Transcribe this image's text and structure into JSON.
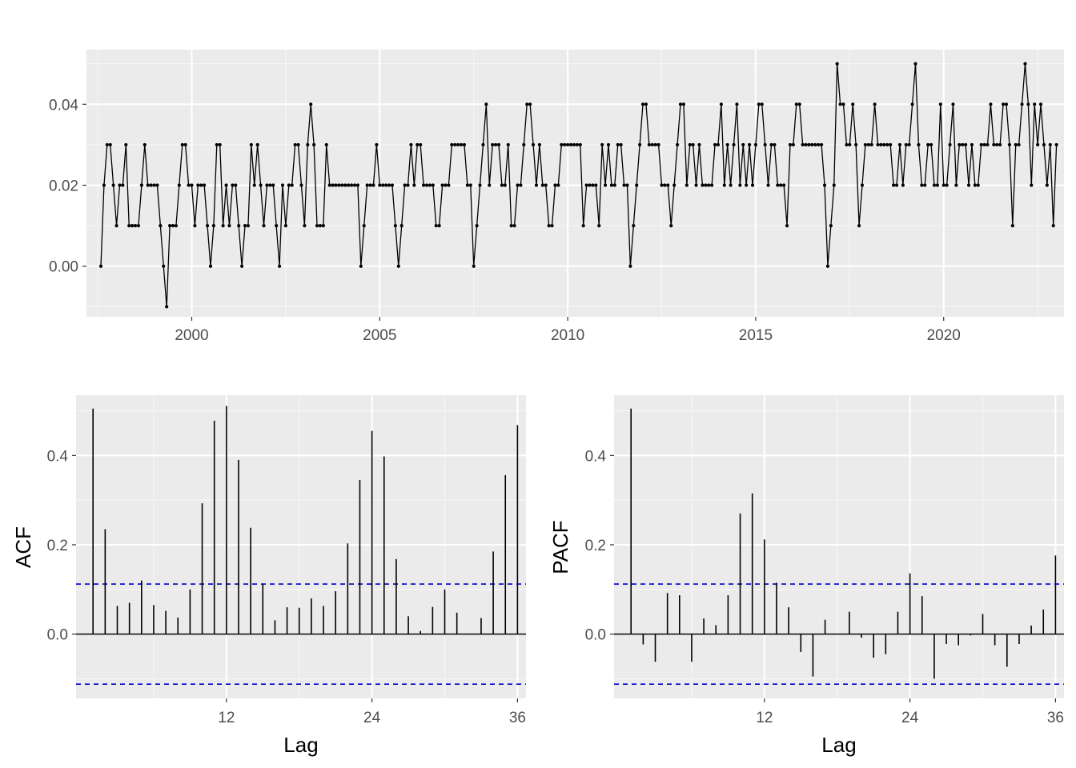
{
  "colors": {
    "panel_bg": "#ebebeb",
    "grid_major": "#ffffff",
    "grid_minor": "#f7f7f7",
    "series": "#000000",
    "ci_line": "#0000cc",
    "tick_text": "#4d4d4d"
  },
  "chart_data": [
    {
      "id": "series",
      "type": "line",
      "title": "",
      "xlabel": "",
      "ylabel": "",
      "xlim": [
        1997.2,
        2023.2
      ],
      "ylim": [
        -0.0125,
        0.0535
      ],
      "x_ticks": [
        2000,
        2005,
        2010,
        2015,
        2020
      ],
      "x_tick_labels": [
        "2000",
        "2005",
        "2010",
        "2015",
        "2020"
      ],
      "y_ticks": [
        0.0,
        0.02,
        0.04
      ],
      "y_tick_labels": [
        "0.00",
        "0.02",
        "0.04"
      ],
      "grid": true,
      "point_markers": true,
      "x_start": 1997.5833,
      "x_step": 0.0833333,
      "values": [
        0.0,
        0.02,
        0.03,
        0.03,
        0.02,
        0.01,
        0.02,
        0.02,
        0.03,
        0.01,
        0.01,
        0.01,
        0.01,
        0.02,
        0.03,
        0.02,
        0.02,
        0.02,
        0.02,
        0.01,
        0.0,
        -0.01,
        0.01,
        0.01,
        0.01,
        0.02,
        0.03,
        0.03,
        0.02,
        0.02,
        0.01,
        0.02,
        0.02,
        0.02,
        0.01,
        0.0,
        0.01,
        0.03,
        0.03,
        0.01,
        0.02,
        0.01,
        0.02,
        0.02,
        0.01,
        0.0,
        0.01,
        0.01,
        0.03,
        0.02,
        0.03,
        0.02,
        0.01,
        0.02,
        0.02,
        0.02,
        0.01,
        0.0,
        0.02,
        0.01,
        0.02,
        0.02,
        0.03,
        0.03,
        0.02,
        0.01,
        0.03,
        0.04,
        0.03,
        0.01,
        0.01,
        0.01,
        0.03,
        0.02,
        0.02,
        0.02,
        0.02,
        0.02,
        0.02,
        0.02,
        0.02,
        0.02,
        0.02,
        0.0,
        0.01,
        0.02,
        0.02,
        0.02,
        0.03,
        0.02,
        0.02,
        0.02,
        0.02,
        0.02,
        0.01,
        0.0,
        0.01,
        0.02,
        0.02,
        0.03,
        0.02,
        0.03,
        0.03,
        0.02,
        0.02,
        0.02,
        0.02,
        0.01,
        0.01,
        0.02,
        0.02,
        0.02,
        0.03,
        0.03,
        0.03,
        0.03,
        0.03,
        0.02,
        0.02,
        0.0,
        0.01,
        0.02,
        0.03,
        0.04,
        0.02,
        0.03,
        0.03,
        0.03,
        0.02,
        0.02,
        0.03,
        0.01,
        0.01,
        0.02,
        0.02,
        0.03,
        0.04,
        0.04,
        0.03,
        0.02,
        0.03,
        0.02,
        0.02,
        0.01,
        0.01,
        0.02,
        0.02,
        0.03,
        0.03,
        0.03,
        0.03,
        0.03,
        0.03,
        0.03,
        0.01,
        0.02,
        0.02,
        0.02,
        0.02,
        0.01,
        0.03,
        0.02,
        0.03,
        0.02,
        0.02,
        0.03,
        0.03,
        0.02,
        0.02,
        0.0,
        0.01,
        0.02,
        0.03,
        0.04,
        0.04,
        0.03,
        0.03,
        0.03,
        0.03,
        0.02,
        0.02,
        0.02,
        0.01,
        0.02,
        0.03,
        0.04,
        0.04,
        0.02,
        0.03,
        0.03,
        0.02,
        0.03,
        0.02,
        0.02,
        0.02,
        0.02,
        0.03,
        0.03,
        0.04,
        0.02,
        0.03,
        0.02,
        0.03,
        0.04,
        0.02,
        0.03,
        0.02,
        0.03,
        0.02,
        0.03,
        0.04,
        0.04,
        0.03,
        0.02,
        0.03,
        0.03,
        0.02,
        0.02,
        0.02,
        0.01,
        0.03,
        0.03,
        0.04,
        0.04,
        0.03,
        0.03,
        0.03,
        0.03,
        0.03,
        0.03,
        0.03,
        0.02,
        0.0,
        0.01,
        0.02,
        0.05,
        0.04,
        0.04,
        0.03,
        0.03,
        0.04,
        0.03,
        0.01,
        0.02,
        0.03,
        0.03,
        0.03,
        0.04,
        0.03,
        0.03,
        0.03,
        0.03,
        0.03,
        0.02,
        0.02,
        0.03,
        0.02,
        0.03,
        0.03,
        0.04,
        0.05,
        0.03,
        0.02,
        0.02,
        0.03,
        0.03,
        0.02,
        0.02,
        0.04,
        0.02,
        0.02,
        0.03,
        0.04,
        0.02,
        0.03,
        0.03,
        0.03,
        0.02,
        0.03,
        0.02,
        0.02,
        0.03,
        0.03,
        0.03,
        0.04,
        0.03,
        0.03,
        0.03,
        0.04,
        0.04,
        0.03,
        0.01,
        0.03,
        0.03,
        0.04,
        0.05,
        0.04,
        0.02,
        0.04,
        0.03,
        0.04,
        0.03,
        0.02,
        0.03,
        0.01,
        0.03
      ]
    },
    {
      "id": "acf",
      "type": "bar",
      "title": "",
      "xlabel": "Lag",
      "ylabel": "ACF",
      "xlim": [
        -0.4,
        36.7
      ],
      "ylim": [
        -0.144,
        0.535
      ],
      "x_ticks": [
        12,
        24,
        36
      ],
      "x_tick_labels": [
        "12",
        "24",
        "36"
      ],
      "y_ticks": [
        0.0,
        0.2,
        0.4
      ],
      "y_tick_labels": [
        "0.0",
        "0.2",
        "0.4"
      ],
      "grid": true,
      "ci": 0.112,
      "lags": [
        1,
        2,
        3,
        4,
        5,
        6,
        7,
        8,
        9,
        10,
        11,
        12,
        13,
        14,
        15,
        16,
        17,
        18,
        19,
        20,
        21,
        22,
        23,
        24,
        25,
        26,
        27,
        28,
        29,
        30,
        31,
        32,
        33,
        34,
        35,
        36
      ],
      "values": [
        0.505,
        0.235,
        0.063,
        0.07,
        0.12,
        0.065,
        0.052,
        0.037,
        0.1,
        0.293,
        0.478,
        0.511,
        0.39,
        0.238,
        0.112,
        0.031,
        0.06,
        0.059,
        0.08,
        0.063,
        0.096,
        0.203,
        0.345,
        0.455,
        0.398,
        0.168,
        0.04,
        0.007,
        0.061,
        0.1,
        0.048,
        0.0,
        0.036,
        0.185,
        0.356,
        0.468
      ]
    },
    {
      "id": "pacf",
      "type": "bar",
      "title": "",
      "xlabel": "Lag",
      "ylabel": "PACF",
      "xlim": [
        -0.4,
        36.7
      ],
      "ylim": [
        -0.144,
        0.535
      ],
      "x_ticks": [
        12,
        24,
        36
      ],
      "x_tick_labels": [
        "12",
        "24",
        "36"
      ],
      "y_ticks": [
        0.0,
        0.2,
        0.4
      ],
      "y_tick_labels": [
        "0.0",
        "0.2",
        "0.4"
      ],
      "grid": true,
      "ci": 0.112,
      "lags": [
        1,
        2,
        3,
        4,
        5,
        6,
        7,
        8,
        9,
        10,
        11,
        12,
        13,
        14,
        15,
        16,
        17,
        18,
        19,
        20,
        21,
        22,
        23,
        24,
        25,
        26,
        27,
        28,
        29,
        30,
        31,
        32,
        33,
        34,
        35,
        36
      ],
      "values": [
        0.505,
        -0.023,
        -0.062,
        0.092,
        0.087,
        -0.062,
        0.035,
        0.02,
        0.087,
        0.27,
        0.315,
        0.212,
        0.115,
        0.06,
        -0.04,
        -0.095,
        0.032,
        0.0,
        0.05,
        -0.008,
        -0.053,
        -0.045,
        0.05,
        0.136,
        0.085,
        -0.1,
        -0.022,
        -0.025,
        -0.003,
        0.045,
        -0.025,
        -0.073,
        -0.022,
        0.019,
        0.055,
        0.176
      ]
    }
  ]
}
